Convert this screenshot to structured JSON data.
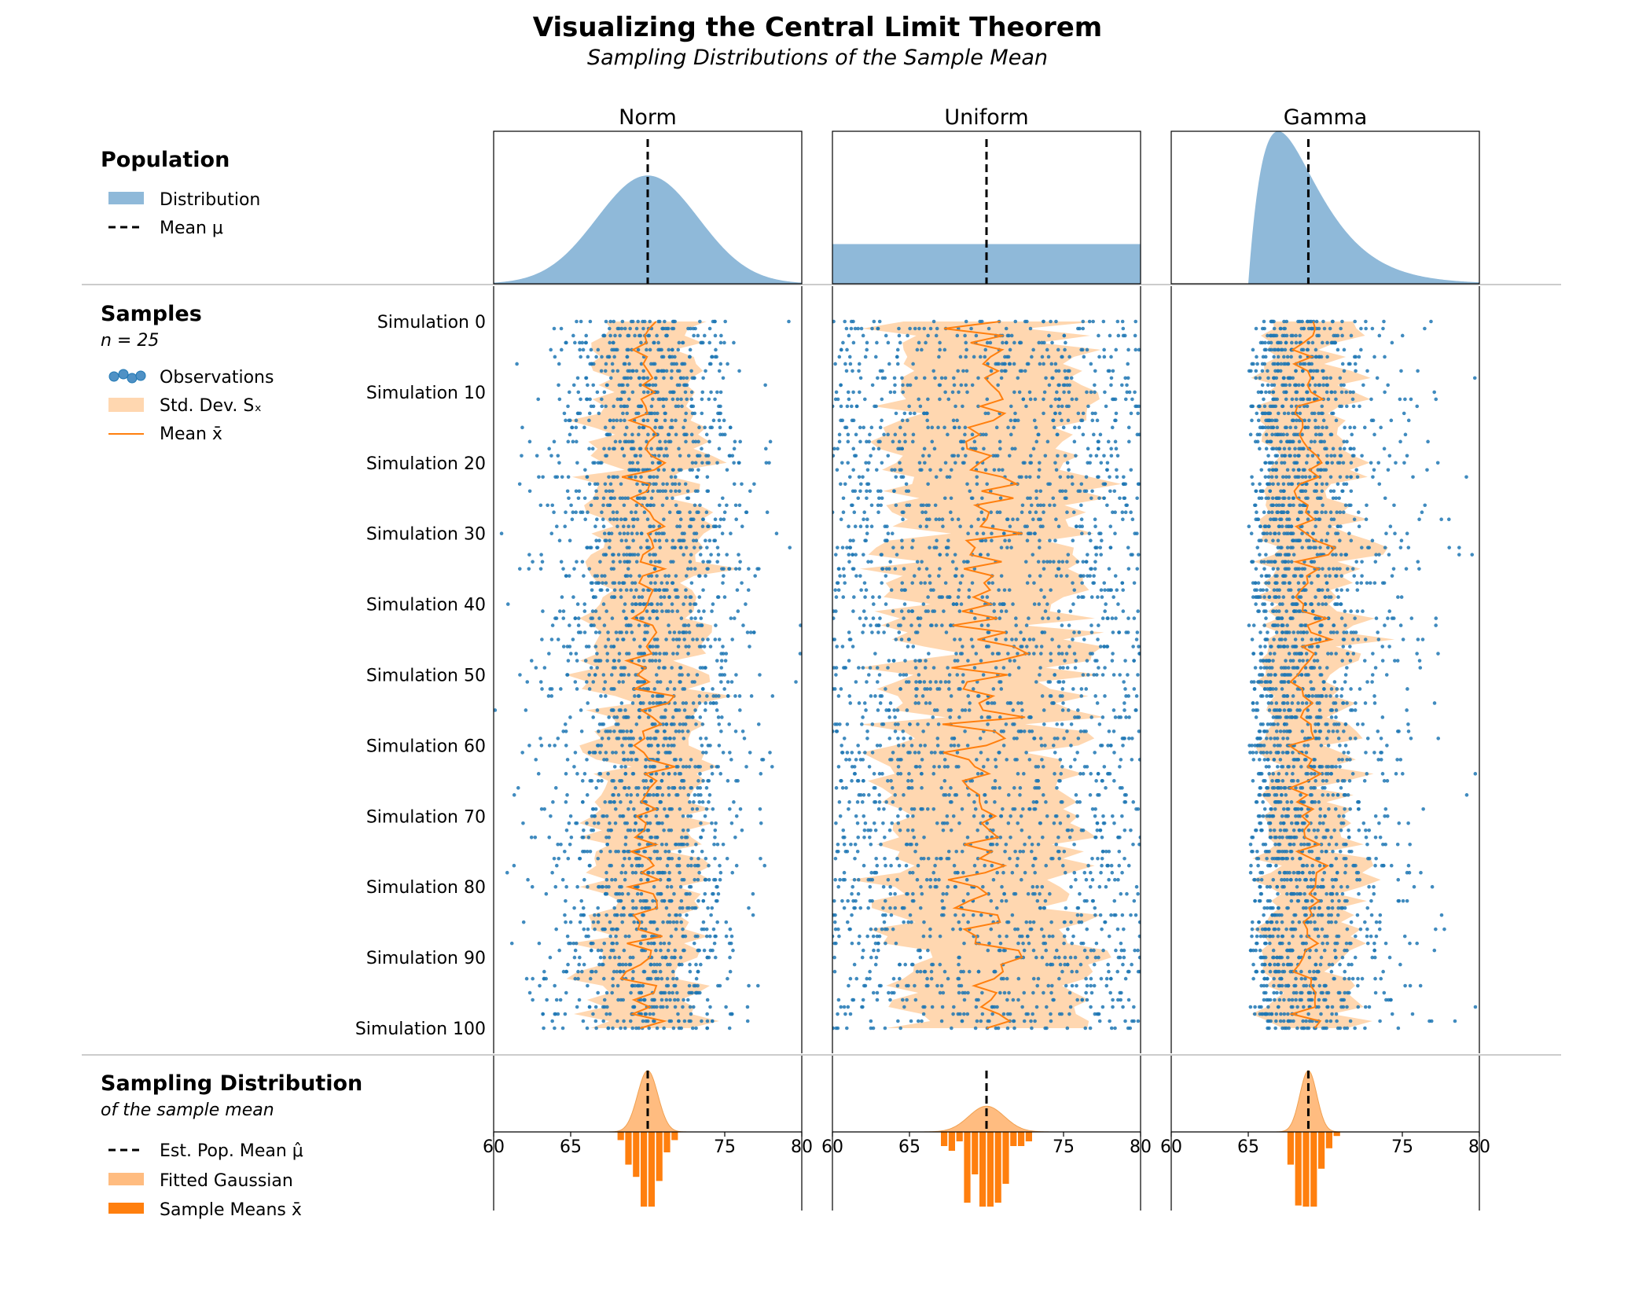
{
  "figure": {
    "title": "Visualizing the Central Limit Theorem",
    "subtitle": "Sampling Distributions of the Sample Mean"
  },
  "legend": {
    "population": {
      "heading": "Population",
      "items": [
        {
          "label": "Distribution",
          "symbol": "blue-patch"
        },
        {
          "label": "Mean μ",
          "symbol": "dashed-line"
        }
      ]
    },
    "samples": {
      "heading": "Samples",
      "note": "n = 25",
      "items": [
        {
          "label": "Observations",
          "symbol": "blue-dots"
        },
        {
          "label": "Std. Dev. Sₓ",
          "symbol": "orange-band"
        },
        {
          "label": "Mean x̄",
          "symbol": "orange-line"
        }
      ]
    },
    "sampling": {
      "heading": "Sampling Distribution",
      "note": "of the sample mean",
      "items": [
        {
          "label": "Est. Pop. Mean μ̂",
          "symbol": "dashed-line"
        },
        {
          "label": "Fitted Gaussian",
          "symbol": "orange-patch"
        },
        {
          "label": "Sample Means x̄",
          "symbol": "orange-bar"
        }
      ]
    }
  },
  "colors": {
    "population_fill": "#8fb9d9",
    "observation_dot": "#1f77b4",
    "band_fill": "#ffd7b0",
    "mean_line": "#ff7f0e",
    "gaussian_fill": "#ffbc80",
    "hist_bar": "#ff7f0e",
    "separator": "#cccccc"
  },
  "chart_data": {
    "type": "scatter",
    "sample_size": 25,
    "simulation_tick_labels": [
      "Simulation 0",
      "Simulation 10",
      "Simulation 20",
      "Simulation 30",
      "Simulation 40",
      "Simulation 50",
      "Simulation 60",
      "Simulation 70",
      "Simulation 80",
      "Simulation 90",
      "Simulation 100"
    ],
    "simulation_ticks": [
      0,
      10,
      20,
      30,
      40,
      50,
      60,
      70,
      80,
      90,
      100
    ],
    "xlim": [
      60,
      80
    ],
    "x_ticks": [
      60,
      65,
      75,
      80
    ],
    "x_tick_labels": [
      "60",
      "65",
      "75",
      "80"
    ],
    "panels": [
      {
        "name": "Norm",
        "kind": "normal",
        "mu": 70,
        "sd": 3.3,
        "sampling_mean": 70.0,
        "sampling_sd": 0.66,
        "band_sd": 3.3
      },
      {
        "name": "Uniform",
        "kind": "uniform",
        "low": 60,
        "high": 80,
        "mu": 70,
        "sampling_mean": 70.0,
        "sampling_sd": 1.15,
        "band_sd": 5.8
      },
      {
        "name": "Gamma",
        "kind": "gamma",
        "loc": 65,
        "mu": 68.9,
        "mode": 67.0,
        "sampling_mean": 68.9,
        "sampling_sd": 0.55,
        "band_sd": 2.4
      }
    ]
  }
}
